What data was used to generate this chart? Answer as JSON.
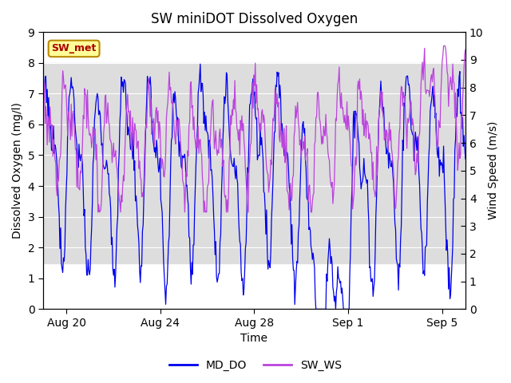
{
  "title": "SW miniDOT Dissolved Oxygen",
  "xlabel": "Time",
  "ylabel_left": "Dissolved Oxygen (mg/l)",
  "ylabel_right": "Wind Speed (m/s)",
  "ylim_left": [
    0.0,
    9.0
  ],
  "ylim_right": [
    0.0,
    10.0
  ],
  "yticks_left": [
    0.0,
    1.0,
    2.0,
    3.0,
    4.0,
    5.0,
    6.0,
    7.0,
    8.0,
    9.0
  ],
  "yticks_right": [
    0.0,
    1.0,
    2.0,
    3.0,
    4.0,
    5.0,
    6.0,
    7.0,
    8.0,
    9.0,
    10.0
  ],
  "xtick_labels": [
    "Aug 20",
    "Aug 24",
    "Aug 28",
    "Sep 1",
    "Sep 5"
  ],
  "xtick_positions": [
    1,
    5,
    9,
    13,
    17
  ],
  "xlim": [
    0,
    18
  ],
  "color_md_do": "#0000EE",
  "color_sw_ws": "#BB44DD",
  "legend_label_1": "MD_DO",
  "legend_label_2": "SW_WS",
  "annotation_label": "SW_met",
  "annotation_color": "#AA0000",
  "annotation_bg": "#FFFF99",
  "annotation_border": "#BB8800",
  "band_color": "#DDDDDD",
  "band_lower": 1.5,
  "band_upper": 8.0,
  "bg_color": "#FFFFFF",
  "n_points": 600,
  "seed": 77
}
